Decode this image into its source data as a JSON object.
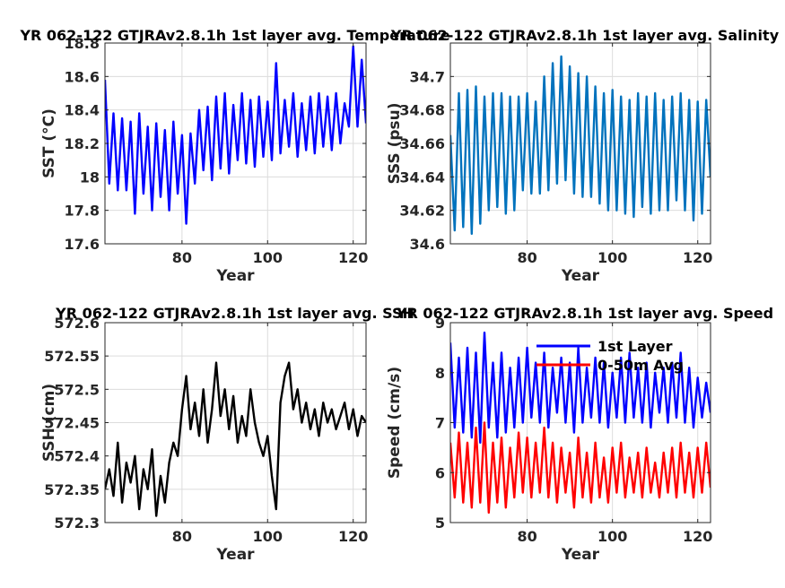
{
  "chart_data": [
    {
      "type": "line",
      "title": "YR 062-122 GTJRAv2.8.1h 1st layer avg. Temperature",
      "xlabel": "Year",
      "ylabel": "SST (°C)",
      "xlim": [
        62,
        123
      ],
      "ylim": [
        17.6,
        18.8
      ],
      "xticks": [
        80,
        100,
        120
      ],
      "yticks": [
        17.6,
        17.8,
        18,
        18.2,
        18.4,
        18.6,
        18.8
      ],
      "xtick_labels": [
        "80",
        "100",
        "120"
      ],
      "ytick_labels": [
        "17.6",
        "17.8",
        "18",
        "18.2",
        "18.4",
        "18.6",
        "18.8"
      ],
      "grid": true,
      "series": [
        {
          "color": "#0000ff",
          "x": [
            62,
            63,
            64,
            65,
            66,
            67,
            68,
            69,
            70,
            71,
            72,
            73,
            74,
            75,
            76,
            77,
            78,
            79,
            80,
            81,
            82,
            83,
            84,
            85,
            86,
            87,
            88,
            89,
            90,
            91,
            92,
            93,
            94,
            95,
            96,
            97,
            98,
            99,
            100,
            101,
            102,
            103,
            104,
            105,
            106,
            107,
            108,
            109,
            110,
            111,
            112,
            113,
            114,
            115,
            116,
            117,
            118,
            119,
            120,
            121,
            122,
            123
          ],
          "values": [
            18.58,
            17.96,
            18.38,
            17.92,
            18.35,
            17.92,
            18.33,
            17.78,
            18.38,
            17.9,
            18.3,
            17.8,
            18.32,
            17.88,
            18.28,
            17.8,
            18.33,
            17.9,
            18.25,
            17.72,
            18.26,
            17.96,
            18.4,
            18.04,
            18.42,
            17.98,
            18.48,
            18.05,
            18.5,
            18.02,
            18.43,
            18.1,
            18.5,
            18.08,
            18.46,
            18.06,
            18.48,
            18.12,
            18.45,
            18.1,
            18.68,
            18.14,
            18.46,
            18.18,
            18.5,
            18.12,
            18.44,
            18.16,
            18.48,
            18.14,
            18.5,
            18.18,
            18.48,
            18.16,
            18.5,
            18.2,
            18.44,
            18.3,
            18.78,
            18.3,
            18.7,
            18.32
          ]
        }
      ]
    },
    {
      "type": "line",
      "title": "YR 062-122 GTJRAv2.8.1h 1st layer avg. Salinity",
      "xlabel": "Year",
      "ylabel": "SSS (psu)",
      "xlim": [
        62,
        123
      ],
      "ylim": [
        34.6,
        34.72
      ],
      "xticks": [
        80,
        100,
        120
      ],
      "yticks": [
        34.6,
        34.62,
        34.64,
        34.66,
        34.68,
        34.7
      ],
      "xtick_labels": [
        "80",
        "100",
        "120"
      ],
      "ytick_labels": [
        "34.6",
        "34.62",
        "34.64",
        "34.66",
        "34.68",
        "34.7"
      ],
      "grid": true,
      "series": [
        {
          "color": "#0072bd",
          "x": [
            62,
            63,
            64,
            65,
            66,
            67,
            68,
            69,
            70,
            71,
            72,
            73,
            74,
            75,
            76,
            77,
            78,
            79,
            80,
            81,
            82,
            83,
            84,
            85,
            86,
            87,
            88,
            89,
            90,
            91,
            92,
            93,
            94,
            95,
            96,
            97,
            98,
            99,
            100,
            101,
            102,
            103,
            104,
            105,
            106,
            107,
            108,
            109,
            110,
            111,
            112,
            113,
            114,
            115,
            116,
            117,
            118,
            119,
            120,
            121,
            122,
            123
          ],
          "values": [
            34.665,
            34.608,
            34.69,
            34.61,
            34.692,
            34.606,
            34.694,
            34.612,
            34.688,
            34.62,
            34.69,
            34.622,
            34.69,
            34.618,
            34.688,
            34.62,
            34.688,
            34.632,
            34.69,
            34.63,
            34.685,
            34.63,
            34.7,
            34.632,
            34.708,
            34.636,
            34.712,
            34.638,
            34.706,
            34.63,
            34.702,
            34.628,
            34.7,
            34.628,
            34.694,
            34.624,
            34.69,
            34.62,
            34.692,
            34.62,
            34.688,
            34.618,
            34.686,
            34.616,
            34.69,
            34.622,
            34.688,
            34.618,
            34.69,
            34.62,
            34.686,
            34.62,
            34.688,
            34.626,
            34.69,
            34.62,
            34.686,
            34.614,
            34.685,
            34.618,
            34.686,
            34.64
          ]
        }
      ]
    },
    {
      "type": "line",
      "title": "YR 062-122 GTJRAv2.8.1h 1st layer avg. SSH",
      "xlabel": "Year",
      "ylabel": "SSH (cm)",
      "xlim": [
        62,
        123
      ],
      "ylim": [
        572.3,
        572.6
      ],
      "xticks": [
        80,
        100,
        120
      ],
      "yticks": [
        572.3,
        572.35,
        572.4,
        572.45,
        572.5,
        572.55,
        572.6
      ],
      "xtick_labels": [
        "80",
        "100",
        "120"
      ],
      "ytick_labels": [
        "572.3",
        "572.35",
        "572.4",
        "572.45",
        "572.5",
        "572.55",
        "572.6"
      ],
      "grid": true,
      "series": [
        {
          "color": "#000000",
          "x": [
            62,
            63,
            64,
            65,
            66,
            67,
            68,
            69,
            70,
            71,
            72,
            73,
            74,
            75,
            76,
            77,
            78,
            79,
            80,
            81,
            82,
            83,
            84,
            85,
            86,
            87,
            88,
            89,
            90,
            91,
            92,
            93,
            94,
            95,
            96,
            97,
            98,
            99,
            100,
            101,
            102,
            103,
            104,
            105,
            106,
            107,
            108,
            109,
            110,
            111,
            112,
            113,
            114,
            115,
            116,
            117,
            118,
            119,
            120,
            121,
            122,
            123
          ],
          "values": [
            572.35,
            572.38,
            572.34,
            572.42,
            572.33,
            572.39,
            572.36,
            572.4,
            572.32,
            572.38,
            572.35,
            572.41,
            572.31,
            572.37,
            572.33,
            572.39,
            572.42,
            572.4,
            572.47,
            572.52,
            572.44,
            572.48,
            572.43,
            572.5,
            572.42,
            572.47,
            572.54,
            572.46,
            572.5,
            572.44,
            572.49,
            572.42,
            572.46,
            572.43,
            572.5,
            572.45,
            572.42,
            572.4,
            572.43,
            572.37,
            572.32,
            572.48,
            572.52,
            572.54,
            572.47,
            572.5,
            572.45,
            572.48,
            572.44,
            572.47,
            572.43,
            572.48,
            572.45,
            572.47,
            572.44,
            572.46,
            572.48,
            572.44,
            572.47,
            572.43,
            572.46,
            572.45
          ]
        }
      ]
    },
    {
      "type": "line",
      "title": "YR 062-122 GTJRAv2.8.1h 1st layer avg. Speed",
      "xlabel": "Year",
      "ylabel": "Speed (cm/s)",
      "xlim": [
        62,
        123
      ],
      "ylim": [
        5,
        9
      ],
      "xticks": [
        80,
        100,
        120
      ],
      "yticks": [
        5,
        6,
        7,
        8,
        9
      ],
      "xtick_labels": [
        "80",
        "100",
        "120"
      ],
      "ytick_labels": [
        "5",
        "6",
        "7",
        "8",
        "9"
      ],
      "grid": true,
      "legend": "top-center",
      "series": [
        {
          "name": "1st Layer",
          "color": "#0000ff",
          "x": [
            62,
            63,
            64,
            65,
            66,
            67,
            68,
            69,
            70,
            71,
            72,
            73,
            74,
            75,
            76,
            77,
            78,
            79,
            80,
            81,
            82,
            83,
            84,
            85,
            86,
            87,
            88,
            89,
            90,
            91,
            92,
            93,
            94,
            95,
            96,
            97,
            98,
            99,
            100,
            101,
            102,
            103,
            104,
            105,
            106,
            107,
            108,
            109,
            110,
            111,
            112,
            113,
            114,
            115,
            116,
            117,
            118,
            119,
            120,
            121,
            122,
            123
          ],
          "values": [
            8.6,
            6.9,
            8.3,
            6.8,
            8.5,
            6.7,
            8.4,
            6.6,
            8.8,
            6.9,
            8.2,
            6.7,
            8.4,
            6.8,
            8.1,
            6.9,
            8.3,
            7.0,
            8.5,
            7.1,
            8.2,
            7.0,
            8.4,
            6.9,
            8.1,
            7.2,
            8.3,
            7.0,
            8.2,
            6.8,
            8.5,
            7.0,
            8.1,
            7.1,
            8.3,
            7.0,
            8.2,
            6.9,
            8.0,
            7.1,
            8.3,
            7.0,
            8.4,
            7.1,
            8.1,
            7.0,
            8.2,
            6.9,
            8.0,
            7.2,
            8.1,
            7.0,
            8.2,
            7.1,
            8.4,
            7.0,
            8.1,
            6.9,
            7.9,
            7.1,
            7.8,
            7.2
          ]
        },
        {
          "name": "0-50m Avg",
          "color": "#ff0000",
          "x": [
            62,
            63,
            64,
            65,
            66,
            67,
            68,
            69,
            70,
            71,
            72,
            73,
            74,
            75,
            76,
            77,
            78,
            79,
            80,
            81,
            82,
            83,
            84,
            85,
            86,
            87,
            88,
            89,
            90,
            91,
            92,
            93,
            94,
            95,
            96,
            97,
            98,
            99,
            100,
            101,
            102,
            103,
            104,
            105,
            106,
            107,
            108,
            109,
            110,
            111,
            112,
            113,
            114,
            115,
            116,
            117,
            118,
            119,
            120,
            121,
            122,
            123
          ],
          "values": [
            6.6,
            5.5,
            6.8,
            5.4,
            6.6,
            5.3,
            6.9,
            5.4,
            7.0,
            5.2,
            6.6,
            5.4,
            6.7,
            5.3,
            6.5,
            5.5,
            6.8,
            5.6,
            6.7,
            5.5,
            6.6,
            5.6,
            6.9,
            5.5,
            6.6,
            5.4,
            6.5,
            5.6,
            6.4,
            5.3,
            6.7,
            5.5,
            6.4,
            5.4,
            6.6,
            5.5,
            6.3,
            5.4,
            6.5,
            5.6,
            6.6,
            5.5,
            6.3,
            5.6,
            6.4,
            5.5,
            6.5,
            5.6,
            6.2,
            5.5,
            6.4,
            5.6,
            6.5,
            5.5,
            6.6,
            5.6,
            6.4,
            5.5,
            6.5,
            5.6,
            6.6,
            5.7
          ]
        }
      ]
    }
  ]
}
